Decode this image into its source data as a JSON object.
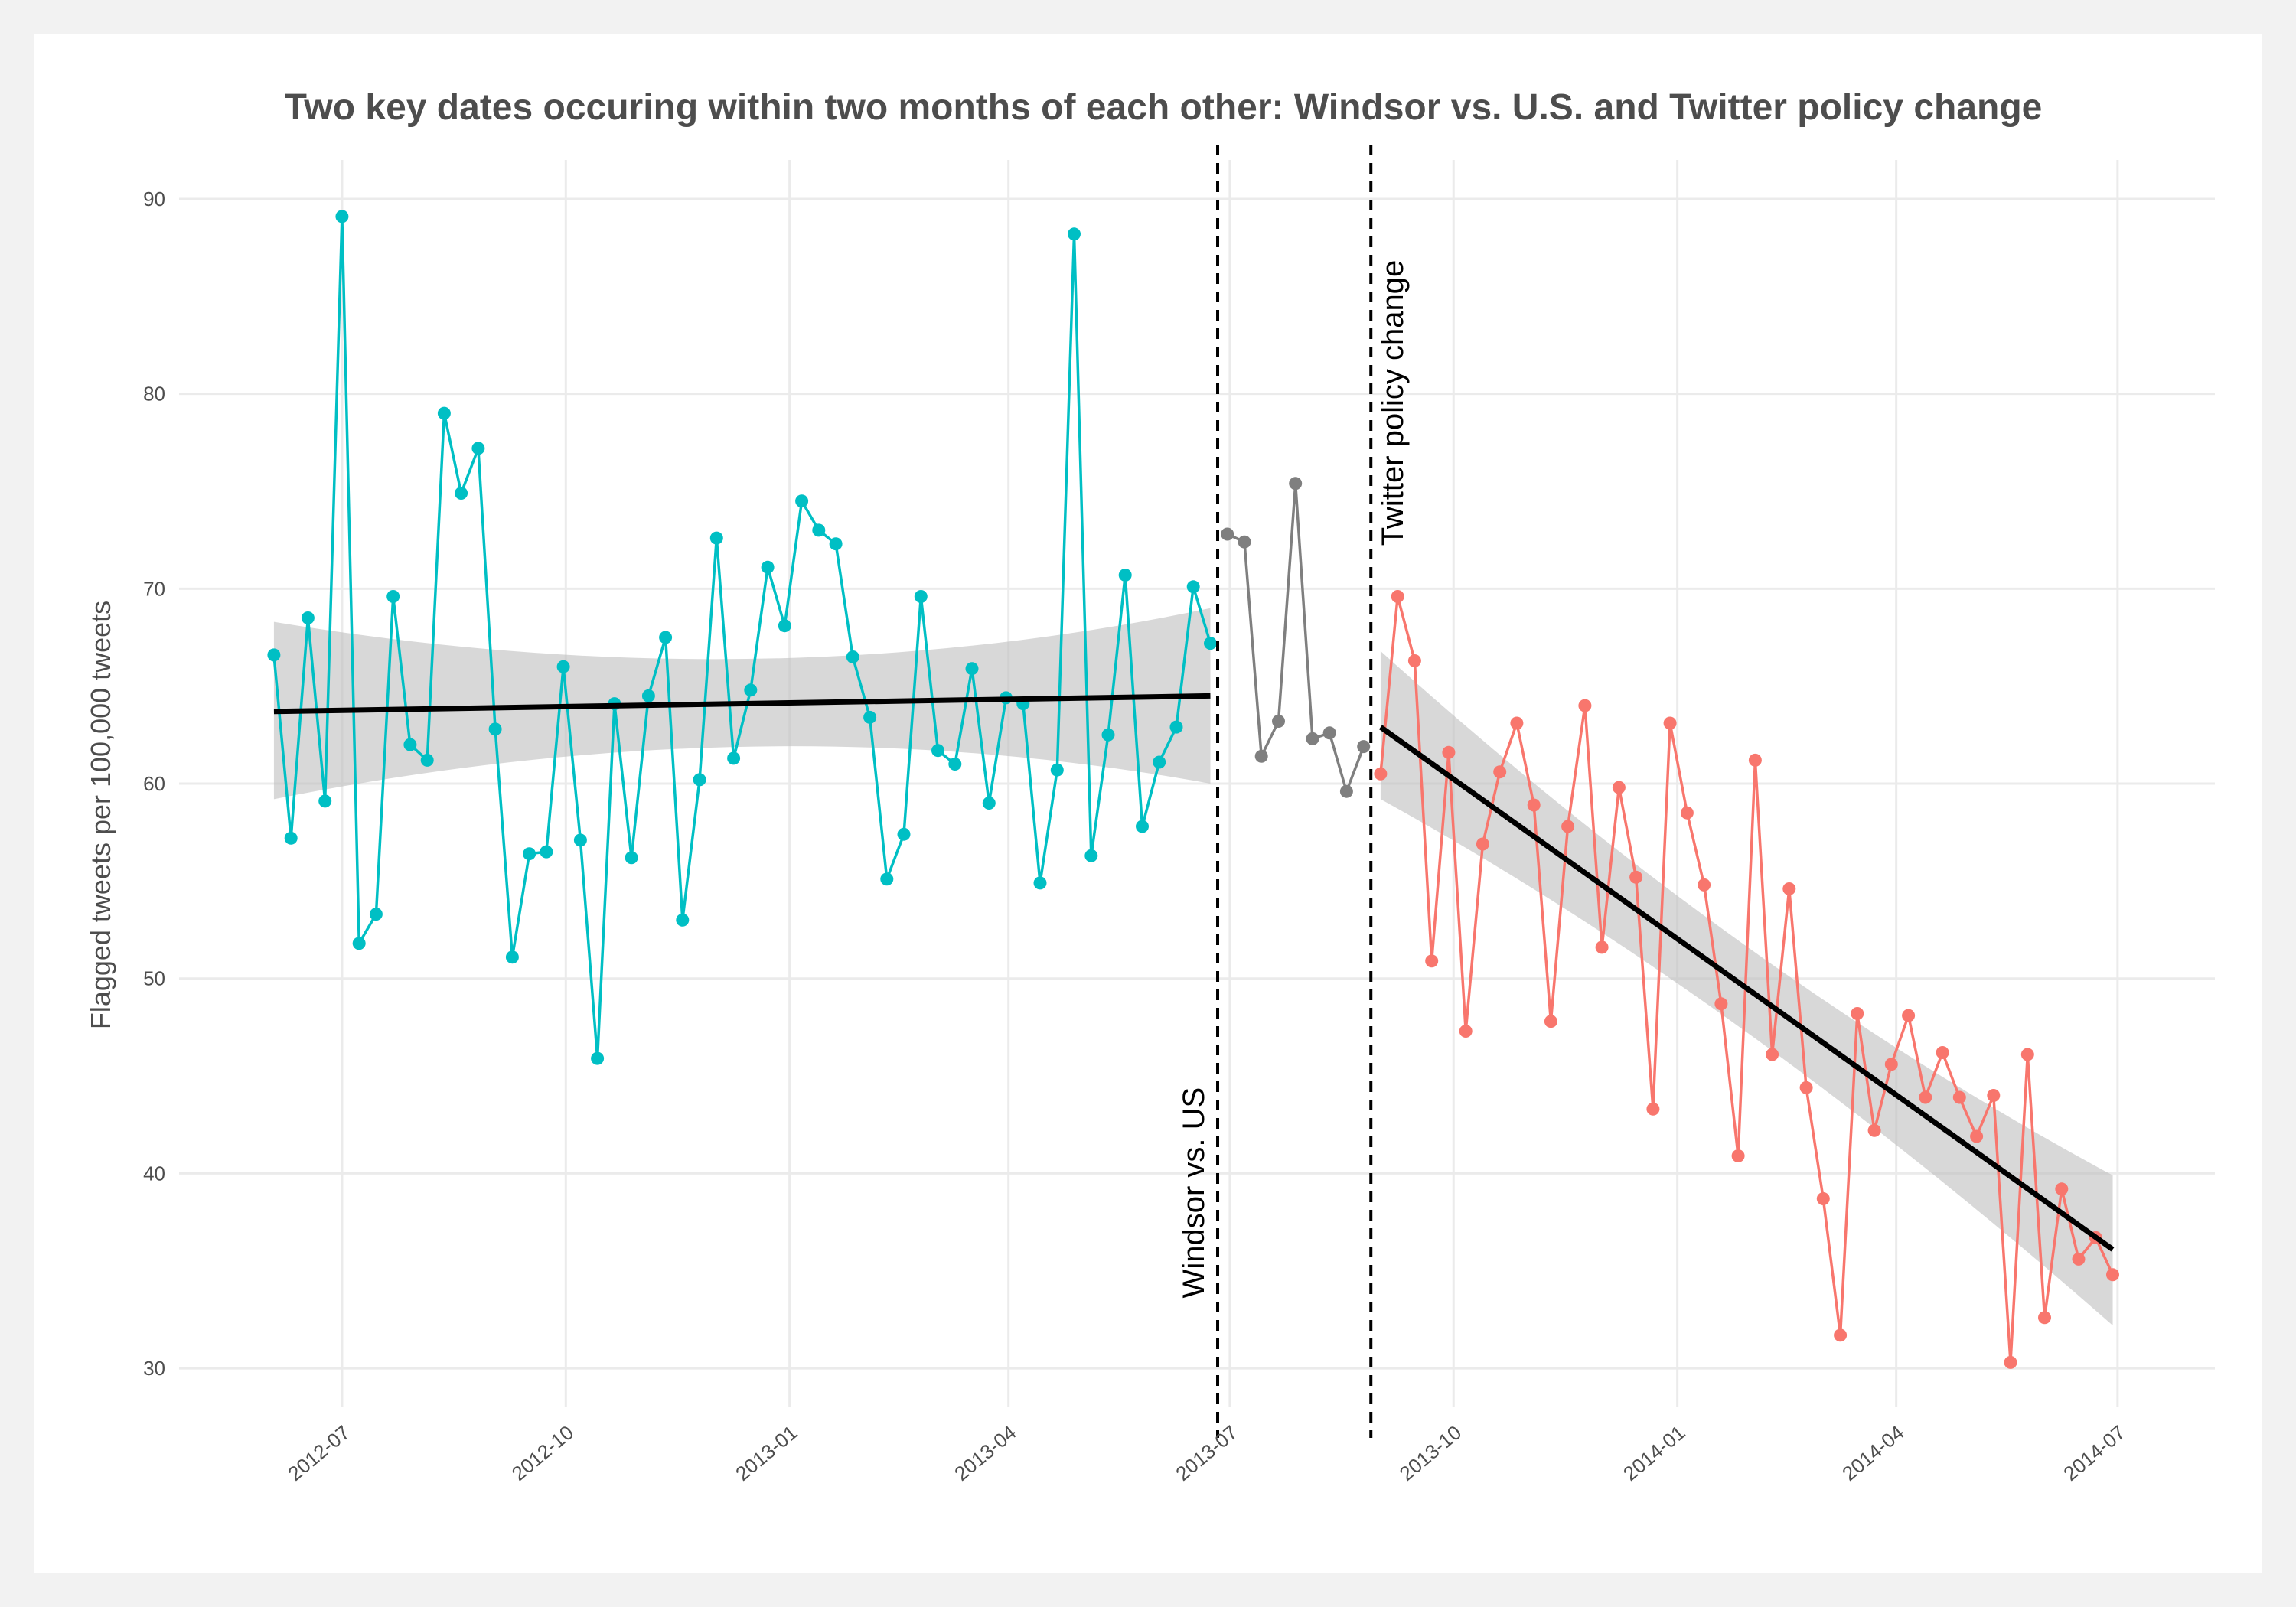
{
  "chart_data": {
    "type": "line",
    "title": "Two key dates occuring within two months of each other: Windsor vs. U.S. and Twitter policy change",
    "xlabel": "",
    "ylabel": "Flagged tweets per 100,000 tweets",
    "ylim": [
      28,
      92
    ],
    "xlim": [
      "2012-04-25",
      "2014-08-10"
    ],
    "y_ticks": [
      30,
      40,
      50,
      60,
      70,
      80,
      90
    ],
    "x_ticks": [
      {
        "date": "2012-07-01",
        "label": "2012-07"
      },
      {
        "date": "2012-10-01",
        "label": "2012-10"
      },
      {
        "date": "2013-01-01",
        "label": "2013-01"
      },
      {
        "date": "2013-04-01",
        "label": "2013-04"
      },
      {
        "date": "2013-07-01",
        "label": "2013-07"
      },
      {
        "date": "2013-10-01",
        "label": "2013-10"
      },
      {
        "date": "2014-01-01",
        "label": "2014-01"
      },
      {
        "date": "2014-04-01",
        "label": "2014-04"
      },
      {
        "date": "2014-07-01",
        "label": "2014-07"
      }
    ],
    "grid": true,
    "legend": "none",
    "events": [
      {
        "date": "2013-06-26",
        "label": "Windsor vs. US"
      },
      {
        "date": "2013-08-28",
        "label": "Twitter policy change"
      }
    ],
    "series": [
      {
        "name": "before",
        "color": "#00BFC4",
        "start_date": "2012-06-03",
        "interval_days": 7,
        "values": [
          66.6,
          57.2,
          68.5,
          59.1,
          89.1,
          51.8,
          53.3,
          69.6,
          62.0,
          61.2,
          79.0,
          74.9,
          77.2,
          62.8,
          51.1,
          56.4,
          56.5,
          66.0,
          57.1,
          45.9,
          64.1,
          56.2,
          64.5,
          67.5,
          53.0,
          60.2,
          72.6,
          61.3,
          64.8,
          71.1,
          68.1,
          74.5,
          73.0,
          72.3,
          66.5,
          63.4,
          55.1,
          57.4,
          69.6,
          61.7,
          61.0,
          65.9,
          59.0,
          64.4,
          64.1,
          54.9,
          60.7,
          88.2,
          56.3,
          62.5,
          70.7,
          57.8,
          61.1,
          62.9,
          70.1,
          67.2
        ]
      },
      {
        "name": "between",
        "color": "#7F7F7F",
        "start_date": "2013-06-30",
        "interval_days": 7,
        "values": [
          72.8,
          72.4,
          61.4,
          63.2,
          75.4,
          62.3,
          62.6,
          59.6,
          61.9
        ]
      },
      {
        "name": "after",
        "color": "#F8766D",
        "start_date": "2013-09-01",
        "interval_days": 7,
        "values": [
          60.5,
          69.6,
          66.3,
          50.9,
          61.6,
          47.3,
          56.9,
          60.6,
          63.1,
          58.9,
          47.8,
          57.8,
          64.0,
          51.6,
          59.8,
          55.2,
          43.3,
          63.1,
          58.5,
          54.8,
          48.7,
          40.9,
          61.2,
          46.1,
          54.6,
          44.4,
          38.7,
          31.7,
          48.2,
          42.2,
          45.6,
          48.1,
          43.9,
          46.2,
          43.9,
          41.9,
          44.0,
          30.3,
          46.1,
          32.6,
          39.2,
          35.6,
          36.7,
          34.8
        ]
      }
    ],
    "trend_lines": [
      {
        "name": "before-fit",
        "start_date": "2012-06-03",
        "end_date": "2013-06-23",
        "y_start": 63.7,
        "y_end": 64.5,
        "ci_start": [
          59.2,
          68.3
        ],
        "ci_mid": [
          61.9,
          66.4
        ],
        "ci_end": [
          60.0,
          69.0
        ],
        "ci_mid_date": "2012-12-20"
      },
      {
        "name": "after-fit",
        "start_date": "2013-09-01",
        "end_date": "2014-06-29",
        "y_start": 62.9,
        "y_end": 36.1,
        "ci_start": [
          59.2,
          66.8
        ],
        "ci_mid": [
          47.4,
          51.8
        ],
        "ci_end": [
          32.2,
          39.9
        ],
        "ci_mid_date": "2014-01-26"
      }
    ],
    "ci_color": "#bebebe"
  }
}
